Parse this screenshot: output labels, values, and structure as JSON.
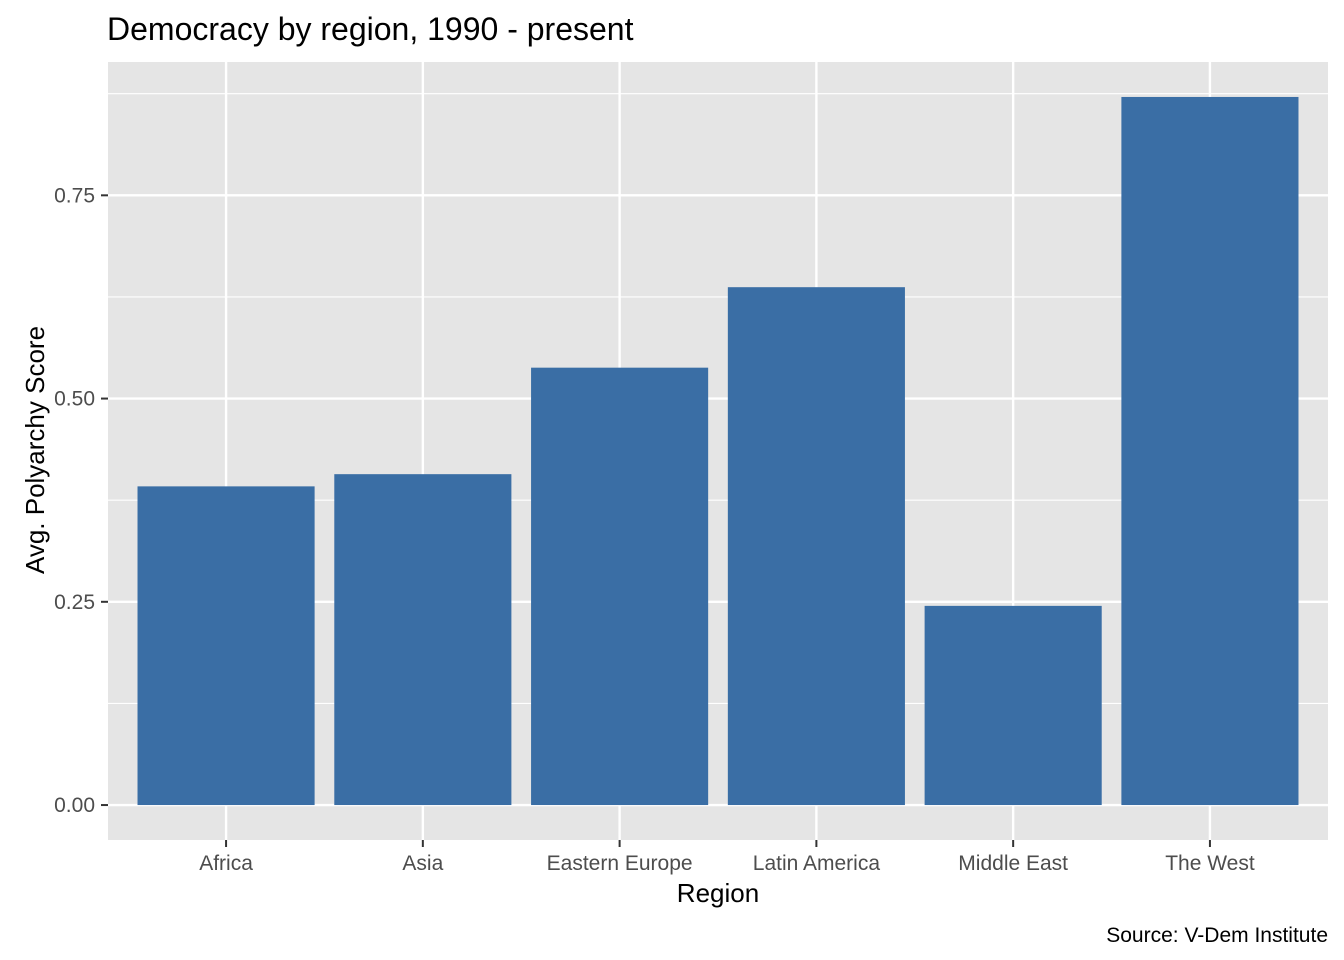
{
  "chart_data": {
    "type": "bar",
    "title": "Democracy by region, 1990 - present",
    "xlabel": "Region",
    "ylabel": "Avg. Polyarchy Score",
    "caption": "Source: V-Dem Institute",
    "categories": [
      "Africa",
      "Asia",
      "Eastern Europe",
      "Latin America",
      "Middle East",
      "The West"
    ],
    "values": [
      0.392,
      0.407,
      0.538,
      0.637,
      0.245,
      0.871
    ],
    "ylim": [
      -0.043,
      0.914
    ],
    "yticks": [
      0,
      0.25,
      0.5,
      0.75
    ],
    "ytick_labels": [
      "0.00",
      "0.25",
      "0.50",
      "0.75"
    ],
    "grid": true,
    "legend": "none",
    "colors": {
      "bar": "#3a6ea5",
      "panel": "#e5e5e5",
      "grid": "#ffffff",
      "tick": "#333333"
    }
  }
}
